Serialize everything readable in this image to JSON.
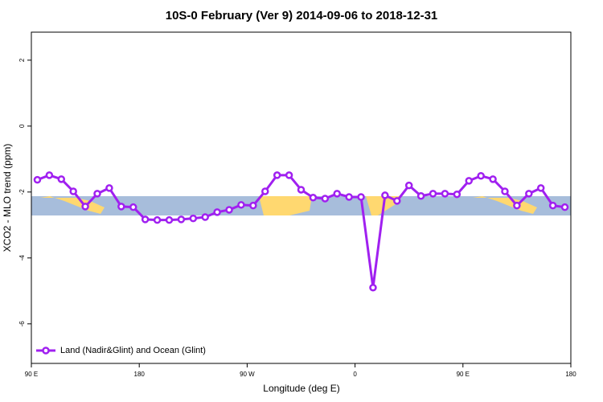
{
  "chart_data": {
    "type": "line",
    "title": "10S-0 February (Ver 9)   2014-09-06 to 2018-12-31",
    "x_label": "Longitude (deg E)",
    "y_label": "XCO2 - MLO trend (ppm)",
    "x": [
      95,
      105,
      115,
      125,
      135,
      145,
      155,
      165,
      175,
      185,
      195,
      205,
      215,
      225,
      235,
      245,
      255,
      265,
      275,
      285,
      295,
      305,
      315,
      325,
      335,
      345,
      355,
      365,
      375,
      385,
      395,
      405,
      415,
      425,
      435,
      445,
      455,
      465,
      475,
      485,
      495,
      505,
      515,
      525,
      535
    ],
    "series": [
      {
        "name": "Land (Nadir&Glint) and Ocean (Glint)",
        "color": "#a020f0",
        "values": [
          -1.63,
          -1.49,
          -1.61,
          -1.98,
          -2.44,
          -2.05,
          -1.88,
          -2.44,
          -2.46,
          -2.83,
          -2.85,
          -2.85,
          -2.83,
          -2.8,
          -2.76,
          -2.61,
          -2.54,
          -2.39,
          -2.41,
          -1.98,
          -1.49,
          -1.49,
          -1.93,
          -2.17,
          -2.2,
          -2.05,
          -2.15,
          -2.15,
          -4.9,
          -2.1,
          -2.27,
          -1.8,
          -2.12,
          -2.05,
          -2.05,
          -2.07,
          -1.66,
          -1.51,
          -1.61,
          -1.98,
          -2.41,
          -2.05,
          -1.88,
          -2.41,
          -2.46
        ]
      }
    ],
    "xlim": [
      90,
      540
    ],
    "xticks": [
      {
        "value": 90,
        "label": "90 E"
      },
      180,
      {
        "value": 270,
        "label": "90 W"
      },
      {
        "value": 360,
        "label": "0"
      },
      {
        "value": 450,
        "label": "90 E"
      },
      {
        "value": 540,
        "label": "180"
      }
    ],
    "ylim": [
      -7.2,
      2.85
    ],
    "yticks": [
      2,
      0,
      -2,
      -4,
      -6
    ],
    "legend": "bottom left"
  }
}
